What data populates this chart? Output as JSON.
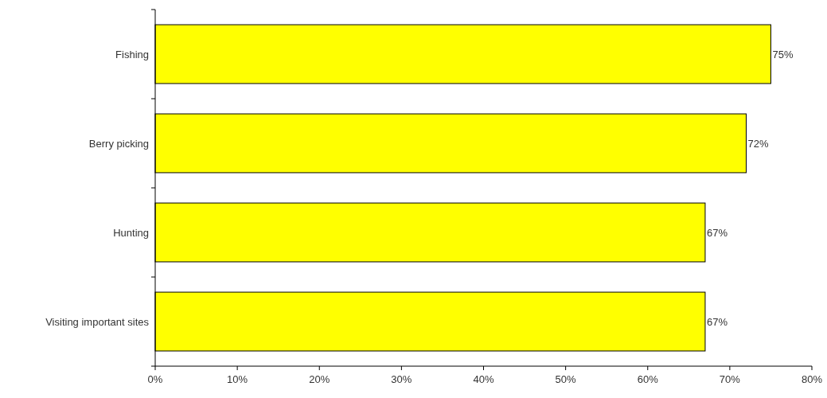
{
  "chart_data": {
    "type": "bar",
    "orientation": "horizontal",
    "categories": [
      "Fishing",
      "Berry picking",
      "Hunting",
      "Visiting important sites"
    ],
    "values": [
      75,
      72,
      67,
      67
    ],
    "value_labels": [
      "75%",
      "72%",
      "67%",
      "67%"
    ],
    "color": "#ffff00",
    "xlim": [
      0,
      80
    ],
    "xticks": [
      {
        "value": 0,
        "label": "0%"
      },
      {
        "value": 10,
        "label": "10%"
      },
      {
        "value": 20,
        "label": "20%"
      },
      {
        "value": 30,
        "label": "30%"
      },
      {
        "value": 40,
        "label": "40%"
      },
      {
        "value": 50,
        "label": "50%"
      },
      {
        "value": 60,
        "label": "60%"
      },
      {
        "value": 70,
        "label": "70%"
      },
      {
        "value": 80,
        "label": "80%"
      }
    ],
    "grid": false
  }
}
